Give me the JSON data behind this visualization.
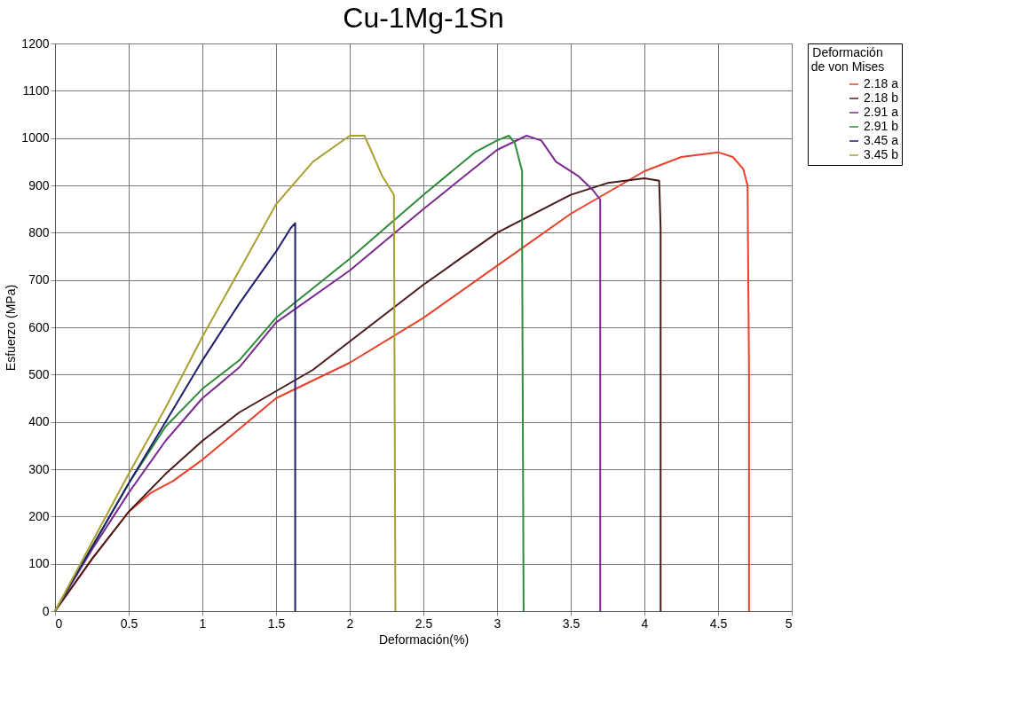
{
  "chart_data": {
    "type": "line",
    "title": "Cu-1Mg-1Sn",
    "xlabel": "Deformación(%)",
    "ylabel": "Esfuerzo (MPa)",
    "legend_title": "Deformación de von Mises",
    "xlim": [
      0,
      5
    ],
    "xticks": [
      0,
      0.5,
      1,
      1.5,
      2,
      2.5,
      3,
      3.5,
      4,
      4.5,
      5
    ],
    "ylim": [
      0,
      1200
    ],
    "yticks": [
      0,
      100,
      200,
      300,
      400,
      500,
      600,
      700,
      800,
      900,
      1000,
      1100,
      1200
    ],
    "grid": true,
    "legend": "right",
    "marker": "none",
    "line_style": "solid",
    "series": [
      {
        "name": "2.18 a",
        "color": "#e8402a",
        "x": [
          0,
          0.25,
          0.5,
          0.65,
          0.8,
          1,
          1.5,
          2,
          2.5,
          3,
          3.5,
          4,
          4.25,
          4.5,
          4.6,
          4.67,
          4.7,
          4.71,
          4.71
        ],
        "values": [
          0,
          110,
          210,
          250,
          275,
          320,
          450,
          525,
          620,
          730,
          840,
          930,
          960,
          970,
          960,
          935,
          900,
          500,
          0
        ]
      },
      {
        "name": "2.18 b",
        "color": "#4a1a1a",
        "x": [
          0,
          0.25,
          0.5,
          0.75,
          1,
          1.25,
          1.5,
          1.75,
          2,
          2.5,
          3,
          3.5,
          3.75,
          4,
          4.1,
          4.11,
          4.11
        ],
        "values": [
          0,
          110,
          210,
          290,
          360,
          420,
          465,
          510,
          570,
          690,
          800,
          880,
          905,
          915,
          910,
          810,
          0
        ]
      },
      {
        "name": "2.91 a",
        "color": "#7a2a90",
        "x": [
          0,
          0.25,
          0.5,
          0.75,
          1,
          1.25,
          1.5,
          2,
          2.5,
          3,
          3.2,
          3.3,
          3.4,
          3.55,
          3.65,
          3.7,
          3.7
        ],
        "values": [
          0,
          130,
          250,
          360,
          450,
          515,
          610,
          720,
          850,
          975,
          1005,
          995,
          950,
          920,
          890,
          870,
          0
        ]
      },
      {
        "name": "2.91 b",
        "color": "#2e8b3a",
        "x": [
          0,
          0.5,
          0.75,
          1,
          1.25,
          1.5,
          2,
          2.5,
          2.85,
          3,
          3.08,
          3.12,
          3.17,
          3.17,
          3.18
        ],
        "values": [
          0,
          270,
          390,
          470,
          530,
          620,
          745,
          880,
          970,
          995,
          1005,
          990,
          930,
          780,
          0
        ]
      },
      {
        "name": "3.45 a",
        "color": "#1e1e6e",
        "x": [
          0,
          0.5,
          0.75,
          1,
          1.25,
          1.5,
          1.6,
          1.63,
          1.63
        ],
        "values": [
          0,
          270,
          400,
          530,
          650,
          760,
          810,
          820,
          0
        ]
      },
      {
        "name": "3.45 b",
        "color": "#a8a030",
        "x": [
          0,
          0.5,
          0.75,
          1,
          1.25,
          1.5,
          1.75,
          2,
          2.1,
          2.15,
          2.22,
          2.3,
          2.31
        ],
        "values": [
          0,
          290,
          430,
          580,
          720,
          860,
          950,
          1005,
          1005,
          970,
          920,
          880,
          0
        ]
      }
    ]
  }
}
